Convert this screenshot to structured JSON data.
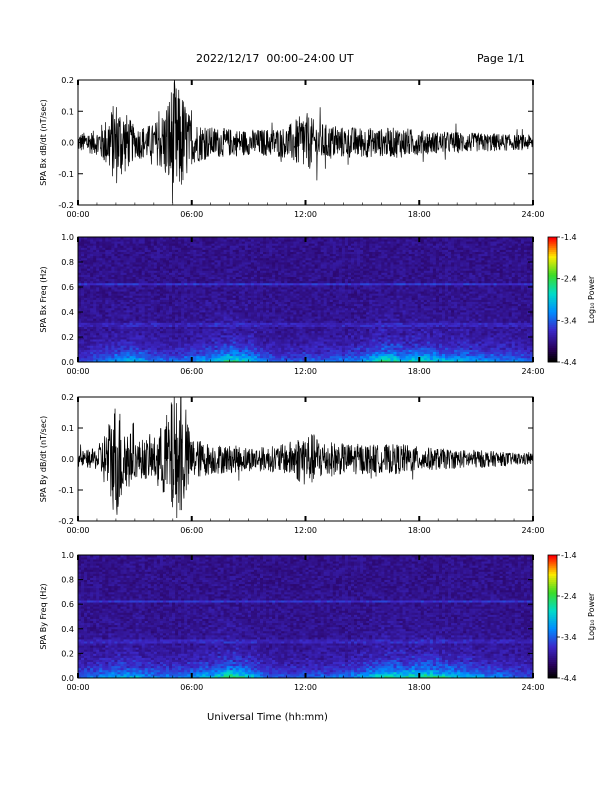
{
  "header": {
    "title": "2022/12/17  00:00–24:00 UT",
    "page": "Page 1/1"
  },
  "chart_data": [
    {
      "type": "line",
      "ylabel": "SPA Bx dB/dt (nT/sec)",
      "xlabel": "",
      "xlim": [
        0,
        24
      ],
      "ylim": [
        -0.2,
        0.2
      ],
      "x_ticks": [
        "00:00",
        "06:00",
        "12:00",
        "18:00",
        "24:00"
      ],
      "y_ticks": [
        "-0.2",
        "-0.1",
        "0.0",
        "0.1",
        "0.2"
      ],
      "series": [
        {
          "x": [
            0,
            1,
            1.5,
            2,
            2.5,
            3,
            4,
            4.5,
            5,
            5.5,
            6,
            7,
            8,
            9,
            10,
            11,
            12,
            12.5,
            13,
            14,
            15,
            16,
            17,
            18,
            19,
            20,
            21,
            22,
            23,
            24
          ],
          "amplitude": [
            0.03,
            0.04,
            0.08,
            0.14,
            0.1,
            0.05,
            0.06,
            0.1,
            0.2,
            0.16,
            0.07,
            0.05,
            0.045,
            0.04,
            0.045,
            0.05,
            0.1,
            0.07,
            0.06,
            0.05,
            0.05,
            0.045,
            0.05,
            0.04,
            0.035,
            0.035,
            0.03,
            0.03,
            0.025,
            0.025
          ]
        }
      ]
    },
    {
      "type": "heatmap",
      "ylabel": "SPA Bx Freq (Hz)",
      "colorbar_label": "Log₁₀ Power",
      "xlim": [
        0,
        24
      ],
      "ylim": [
        0,
        1.0
      ],
      "clim": [
        -4.4,
        -1.4
      ],
      "x_ticks": [
        "00:00",
        "06:00",
        "12:00",
        "18:00",
        "24:00"
      ],
      "y_ticks": [
        "0.0",
        "0.2",
        "0.4",
        "0.6",
        "0.8",
        "1.0"
      ],
      "colorbar_ticks": [
        "-1.4",
        "-2.4",
        "-3.4",
        "-4.4"
      ],
      "activity": [
        0.2,
        0.3,
        0.45,
        0.55,
        0.35,
        0.3,
        0.4,
        0.5,
        0.75,
        0.6,
        0.3,
        0.25,
        0.3,
        0.3,
        0.35,
        0.4,
        0.75,
        0.6,
        0.65,
        0.55,
        0.5,
        0.45,
        0.4,
        0.35,
        0.3
      ]
    },
    {
      "type": "line",
      "ylabel": "SPA By dB/dt (nT/sec)",
      "xlabel": "",
      "xlim": [
        0,
        24
      ],
      "ylim": [
        -0.2,
        0.2
      ],
      "x_ticks": [
        "00:00",
        "06:00",
        "12:00",
        "18:00",
        "24:00"
      ],
      "y_ticks": [
        "-0.2",
        "-0.1",
        "0.0",
        "0.1",
        "0.2"
      ],
      "series": [
        {
          "x": [
            0,
            1,
            1.5,
            2,
            2.5,
            3,
            4,
            4.5,
            5,
            5.5,
            6,
            7,
            8,
            9,
            10,
            11,
            12,
            12.5,
            13,
            14,
            15,
            16,
            17,
            18,
            19,
            20,
            21,
            22,
            23,
            24
          ],
          "amplitude": [
            0.025,
            0.035,
            0.1,
            0.2,
            0.12,
            0.06,
            0.07,
            0.12,
            0.2,
            0.18,
            0.07,
            0.05,
            0.045,
            0.04,
            0.04,
            0.05,
            0.09,
            0.08,
            0.06,
            0.05,
            0.05,
            0.045,
            0.05,
            0.04,
            0.035,
            0.03,
            0.03,
            0.025,
            0.02,
            0.02
          ]
        }
      ]
    },
    {
      "type": "heatmap",
      "ylabel": "SPA By Freq (Hz)",
      "colorbar_label": "Log₁₀ Power",
      "xlim": [
        0,
        24
      ],
      "ylim": [
        0,
        1.0
      ],
      "clim": [
        -4.4,
        -1.4
      ],
      "x_ticks": [
        "00:00",
        "06:00",
        "12:00",
        "18:00",
        "24:00"
      ],
      "y_ticks": [
        "0.0",
        "0.2",
        "0.4",
        "0.6",
        "0.8",
        "1.0"
      ],
      "colorbar_ticks": [
        "-1.4",
        "-2.4",
        "-3.4",
        "-4.4"
      ],
      "activity": [
        0.3,
        0.4,
        0.5,
        0.5,
        0.4,
        0.35,
        0.45,
        0.55,
        0.8,
        0.6,
        0.3,
        0.25,
        0.3,
        0.3,
        0.35,
        0.45,
        0.7,
        0.65,
        0.75,
        0.7,
        0.55,
        0.45,
        0.4,
        0.3,
        0.25
      ]
    }
  ],
  "footer": {
    "xlabel": "Universal Time (hh:mm)"
  }
}
